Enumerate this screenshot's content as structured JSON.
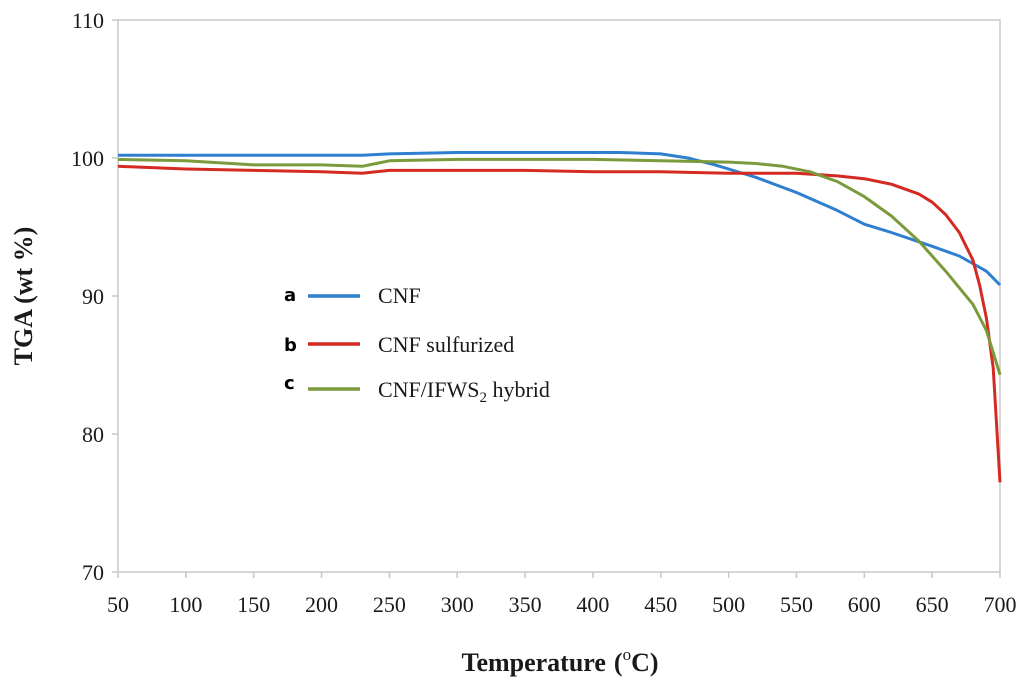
{
  "chart_data": {
    "type": "line",
    "xlabel": "Temperature (oC)",
    "xlabel_main": "Temperature",
    "xlabel_open": "(",
    "xlabel_sup": "o",
    "xlabel_unit": "C)",
    "ylabel": "TGA (wt %)",
    "xlim": [
      50,
      700
    ],
    "ylim": [
      70,
      110
    ],
    "xticks": [
      50,
      100,
      150,
      200,
      250,
      300,
      350,
      400,
      450,
      500,
      550,
      600,
      650,
      700
    ],
    "yticks": [
      70,
      80,
      90,
      100,
      110
    ],
    "grid": false,
    "legend_position": "center-left",
    "series": [
      {
        "name": "CNF",
        "letter": "a",
        "color": "#2f7fd0",
        "x": [
          50,
          100,
          150,
          200,
          230,
          250,
          300,
          350,
          400,
          420,
          450,
          470,
          490,
          500,
          520,
          550,
          580,
          600,
          620,
          650,
          670,
          690,
          700
        ],
        "y": [
          100.2,
          100.2,
          100.2,
          100.2,
          100.2,
          100.3,
          100.4,
          100.4,
          100.4,
          100.4,
          100.3,
          100.0,
          99.5,
          99.2,
          98.6,
          97.5,
          96.2,
          95.2,
          94.6,
          93.6,
          92.9,
          91.8,
          90.8
        ]
      },
      {
        "name": "CNF sulfurized",
        "letter": "b",
        "color": "#d42a22",
        "x": [
          50,
          100,
          150,
          200,
          230,
          250,
          300,
          350,
          400,
          450,
          500,
          550,
          580,
          600,
          620,
          640,
          650,
          660,
          670,
          680,
          685,
          690,
          695,
          700
        ],
        "y": [
          99.4,
          99.2,
          99.1,
          99.0,
          98.9,
          99.1,
          99.1,
          99.1,
          99.0,
          99.0,
          98.9,
          98.9,
          98.7,
          98.5,
          98.1,
          97.4,
          96.8,
          95.9,
          94.6,
          92.6,
          90.8,
          88.4,
          84.8,
          76.5
        ]
      },
      {
        "name": "CNF/IFWS2 hybrid",
        "name_main": "CNF/IFWS",
        "name_sub": "2",
        "name_tail": " hybrid",
        "letter": "c",
        "color": "#7a9a3c",
        "x": [
          50,
          100,
          150,
          200,
          230,
          250,
          300,
          350,
          400,
          450,
          500,
          520,
          540,
          560,
          580,
          600,
          620,
          640,
          660,
          680,
          690,
          700
        ],
        "y": [
          99.9,
          99.8,
          99.5,
          99.5,
          99.4,
          99.8,
          99.9,
          99.9,
          99.9,
          99.8,
          99.7,
          99.6,
          99.4,
          99.0,
          98.3,
          97.2,
          95.8,
          94.0,
          91.8,
          89.4,
          87.5,
          84.3
        ]
      }
    ]
  }
}
